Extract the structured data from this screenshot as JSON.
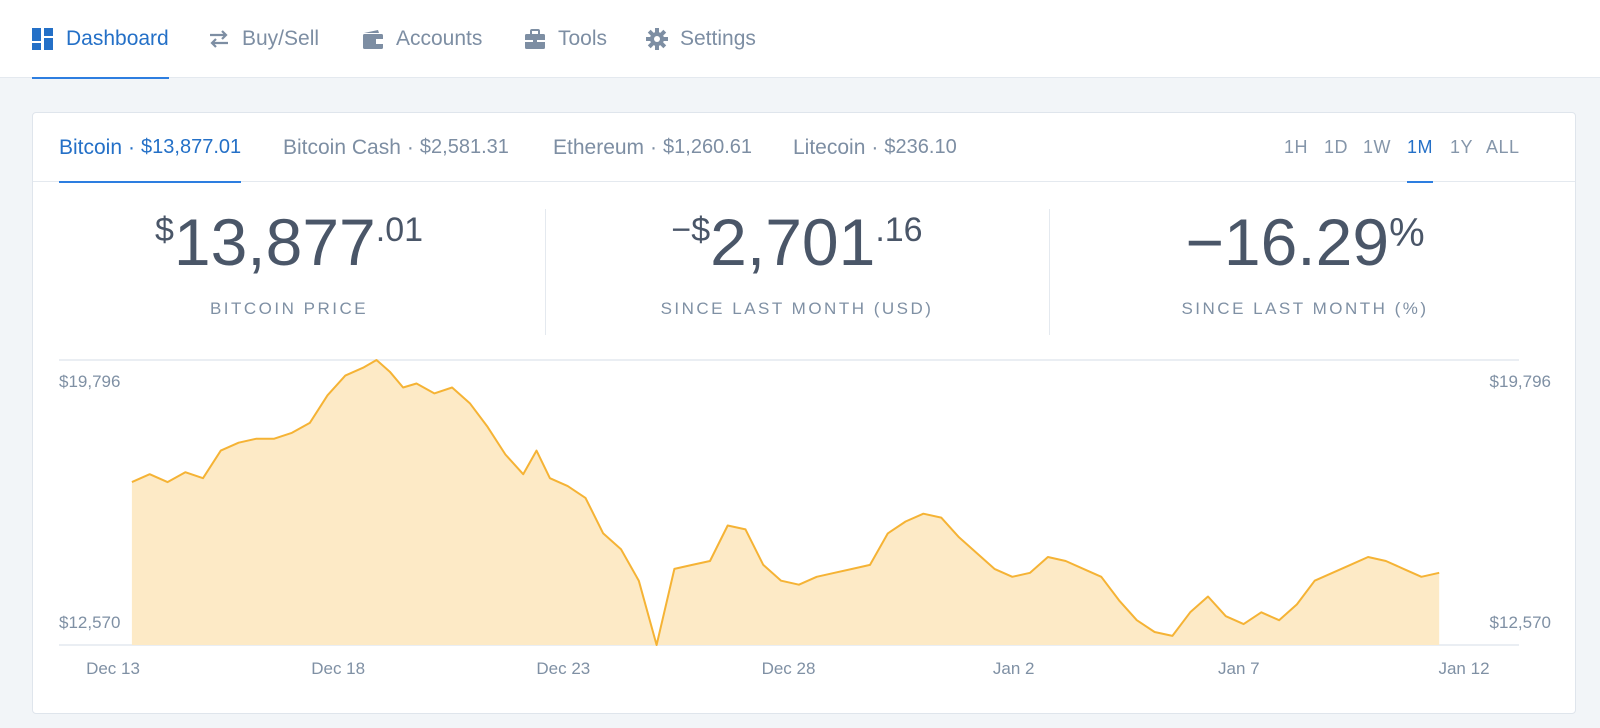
{
  "nav": {
    "items": [
      {
        "label": "Dashboard",
        "icon": "dashboard-icon",
        "active": true
      },
      {
        "label": "Buy/Sell",
        "icon": "swap-arrows-icon",
        "active": false
      },
      {
        "label": "Accounts",
        "icon": "wallet-icon",
        "active": false
      },
      {
        "label": "Tools",
        "icon": "briefcase-icon",
        "active": false
      },
      {
        "label": "Settings",
        "icon": "gear-icon",
        "active": false
      }
    ]
  },
  "assets": [
    {
      "name": "Bitcoin",
      "sep": "·",
      "price": "$13,877.01",
      "active": true
    },
    {
      "name": "Bitcoin Cash",
      "sep": "·",
      "price": "$2,581.31",
      "active": false
    },
    {
      "name": "Ethereum",
      "sep": "·",
      "price": "$1,260.61",
      "active": false
    },
    {
      "name": "Litecoin",
      "sep": "·",
      "price": "$236.10",
      "active": false
    }
  ],
  "ranges": [
    {
      "label": "1H",
      "active": false
    },
    {
      "label": "1D",
      "active": false
    },
    {
      "label": "1W",
      "active": false
    },
    {
      "label": "1M",
      "active": true
    },
    {
      "label": "1Y",
      "active": false
    },
    {
      "label": "ALL",
      "active": false
    }
  ],
  "stats": {
    "price": {
      "prefix": "$",
      "main": "13,877",
      "cents": ".01",
      "label": "BITCOIN PRICE"
    },
    "change_usd": {
      "prefix": "−$",
      "main": "2,701",
      "cents": ".16",
      "label": "SINCE LAST MONTH (USD)"
    },
    "change_pct": {
      "main": "−16.29",
      "suffix": "%",
      "label": "SINCE LAST MONTH (%)"
    }
  },
  "colors": {
    "accent": "#2470c7",
    "line": "#f5b335",
    "fill": "#fdeac6"
  },
  "chart_data": {
    "type": "area",
    "ylabel_max": "$19,796",
    "ylabel_min": "$12,570",
    "ylim": [
      12570,
      19796
    ],
    "x_tick_labels": [
      "Dec 13",
      "Dec 18",
      "Dec 23",
      "Dec 28",
      "Jan 2",
      "Jan 7",
      "Jan 12"
    ],
    "x_tick_positions_day": [
      0,
      5,
      10,
      15,
      20,
      25,
      30
    ],
    "x_range_day": [
      0,
      30
    ],
    "grid": "top-and-bottom lines",
    "series": [
      {
        "values": [
          [
            0.2,
            16700
          ],
          [
            0.6,
            16900
          ],
          [
            1.0,
            16700
          ],
          [
            1.4,
            16950
          ],
          [
            1.8,
            16800
          ],
          [
            2.2,
            17500
          ],
          [
            2.6,
            17700
          ],
          [
            3.0,
            17800
          ],
          [
            3.4,
            17800
          ],
          [
            3.8,
            17950
          ],
          [
            4.2,
            18200
          ],
          [
            4.6,
            18900
          ],
          [
            5.0,
            19400
          ],
          [
            5.4,
            19600
          ],
          [
            5.7,
            19796
          ],
          [
            6.0,
            19500
          ],
          [
            6.3,
            19100
          ],
          [
            6.6,
            19200
          ],
          [
            7.0,
            18950
          ],
          [
            7.4,
            19100
          ],
          [
            7.8,
            18700
          ],
          [
            8.2,
            18100
          ],
          [
            8.6,
            17400
          ],
          [
            9.0,
            16900
          ],
          [
            9.3,
            17500
          ],
          [
            9.6,
            16800
          ],
          [
            10.0,
            16600
          ],
          [
            10.4,
            16300
          ],
          [
            10.8,
            15400
          ],
          [
            11.2,
            15000
          ],
          [
            11.6,
            14200
          ],
          [
            12.0,
            12570
          ],
          [
            12.4,
            14500
          ],
          [
            12.8,
            14600
          ],
          [
            13.2,
            14700
          ],
          [
            13.6,
            15600
          ],
          [
            14.0,
            15500
          ],
          [
            14.4,
            14600
          ],
          [
            14.8,
            14200
          ],
          [
            15.2,
            14100
          ],
          [
            15.6,
            14300
          ],
          [
            16.0,
            14400
          ],
          [
            16.4,
            14500
          ],
          [
            16.8,
            14600
          ],
          [
            17.2,
            15400
          ],
          [
            17.6,
            15700
          ],
          [
            18.0,
            15900
          ],
          [
            18.4,
            15800
          ],
          [
            18.8,
            15300
          ],
          [
            19.2,
            14900
          ],
          [
            19.6,
            14500
          ],
          [
            20.0,
            14300
          ],
          [
            20.4,
            14400
          ],
          [
            20.8,
            14800
          ],
          [
            21.2,
            14700
          ],
          [
            21.6,
            14500
          ],
          [
            22.0,
            14300
          ],
          [
            22.4,
            13700
          ],
          [
            22.8,
            13200
          ],
          [
            23.2,
            12900
          ],
          [
            23.6,
            12800
          ],
          [
            24.0,
            13400
          ],
          [
            24.4,
            13800
          ],
          [
            24.8,
            13300
          ],
          [
            25.2,
            13100
          ],
          [
            25.6,
            13400
          ],
          [
            26.0,
            13200
          ],
          [
            26.4,
            13600
          ],
          [
            26.8,
            14200
          ],
          [
            27.2,
            14400
          ],
          [
            27.6,
            14600
          ],
          [
            28.0,
            14800
          ],
          [
            28.4,
            14700
          ],
          [
            28.8,
            14500
          ],
          [
            29.2,
            14300
          ],
          [
            29.6,
            14400
          ]
        ]
      }
    ]
  }
}
